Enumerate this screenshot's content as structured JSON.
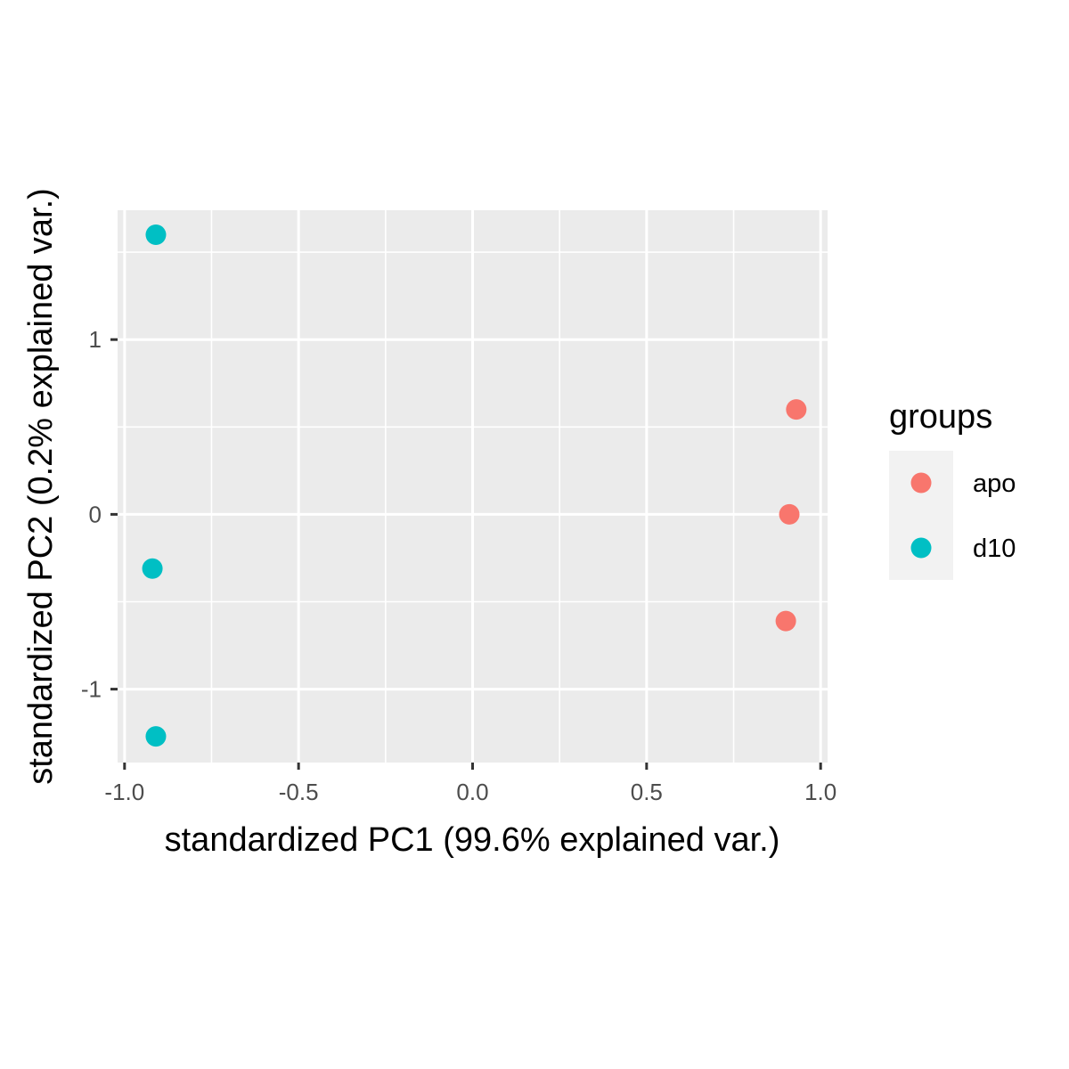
{
  "chart_data": {
    "type": "scatter",
    "title": "",
    "xlabel": "standardized PC1 (99.6% explained var.)",
    "ylabel": "standardized PC2 (0.2% explained var.)",
    "xlim": [
      -1.02,
      1.02
    ],
    "ylim": [
      -1.42,
      1.74
    ],
    "x_ticks": [
      -1.0,
      -0.5,
      0.0,
      0.5,
      1.0
    ],
    "x_tick_labels": [
      "-1.0",
      "-0.5",
      "0.0",
      "0.5",
      "1.0"
    ],
    "y_ticks": [
      -1,
      0,
      1
    ],
    "y_tick_labels": [
      "-1",
      "0",
      "1"
    ],
    "grid": true,
    "legend": {
      "title": "groups",
      "position": "right"
    },
    "series": [
      {
        "name": "apo",
        "color": "#F8766D",
        "points": [
          {
            "x": 0.93,
            "y": 0.6
          },
          {
            "x": 0.91,
            "y": 0.0
          },
          {
            "x": 0.9,
            "y": -0.61
          }
        ]
      },
      {
        "name": "d10",
        "color": "#00BFC4",
        "points": [
          {
            "x": -0.91,
            "y": 1.6
          },
          {
            "x": -0.92,
            "y": -0.31
          },
          {
            "x": -0.91,
            "y": -1.27
          }
        ]
      }
    ]
  }
}
